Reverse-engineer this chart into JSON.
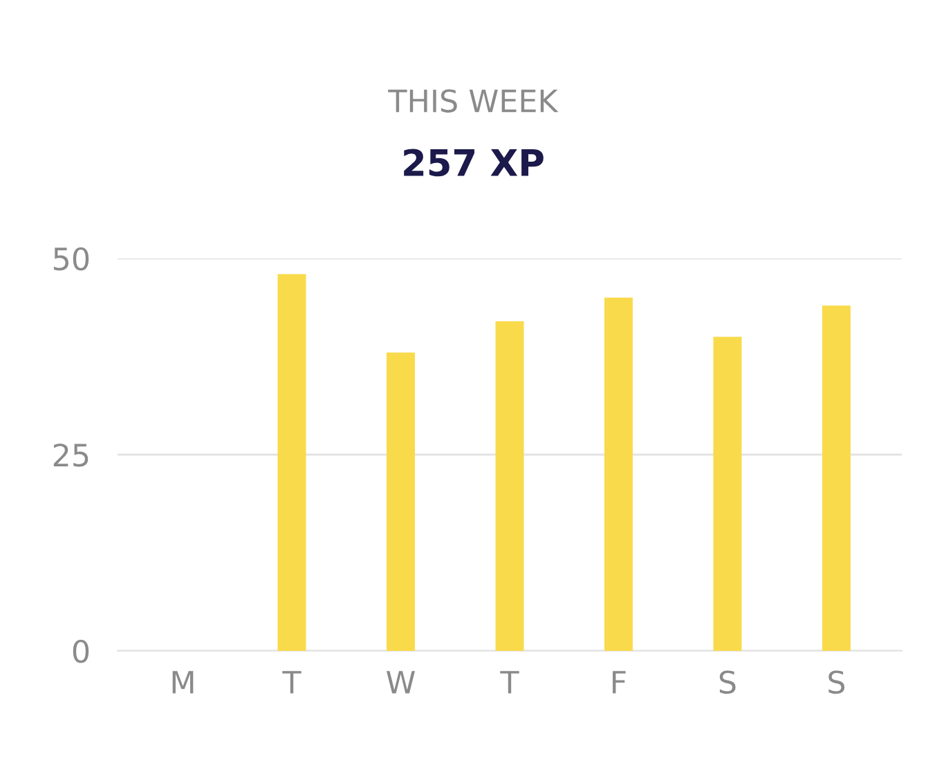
{
  "chart_data": {
    "type": "bar",
    "title": "THIS WEEK",
    "subtitle": "257 XP",
    "categories": [
      "M",
      "T",
      "W",
      "T",
      "F",
      "S",
      "S"
    ],
    "values": [
      0,
      48,
      38,
      42,
      45,
      40,
      44
    ],
    "color": "#f9da4b",
    "ylim": [
      0,
      50
    ],
    "yticks": [
      0,
      25,
      50
    ],
    "grid": "y",
    "legend": false
  }
}
